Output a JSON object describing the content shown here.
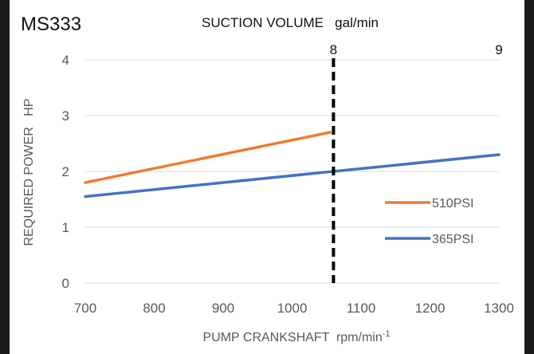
{
  "model": "MS333",
  "chart_data": {
    "type": "line",
    "title": "SUCTION VOLUME   gal/min",
    "xlabel": "PUMP CRANKSHAFT  rpm/min",
    "xlabel_sup": "-1",
    "ylabel": "REQUIRED POWER   HP",
    "xlim": [
      700,
      1300
    ],
    "ylim": [
      0,
      4
    ],
    "xticks": [
      700,
      800,
      900,
      1000,
      1100,
      1200,
      1300
    ],
    "yticks": [
      0,
      1,
      2,
      3,
      4
    ],
    "secondary_x": {
      "ticks": [
        {
          "x": 1060,
          "label": "8"
        },
        {
          "x": 1300,
          "label": "9"
        }
      ]
    },
    "reference_line": {
      "x": 1060,
      "style": "dashed",
      "color": "#000000"
    },
    "grid": "horizontal",
    "legend_position": "right",
    "series": [
      {
        "name": "510PSI",
        "color": "#ED7D31",
        "x": [
          700,
          1055
        ],
        "y": [
          1.8,
          2.7
        ]
      },
      {
        "name": "365PSI",
        "color": "#4472C4",
        "x": [
          700,
          1300
        ],
        "y": [
          1.55,
          2.3
        ]
      }
    ]
  }
}
